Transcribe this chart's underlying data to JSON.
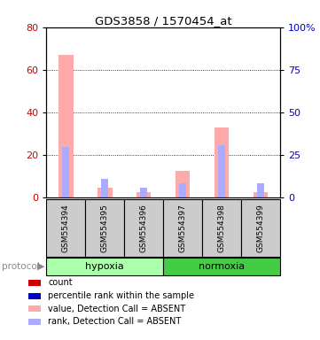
{
  "title": "GDS3858 / 1570454_at",
  "samples": [
    "GSM554394",
    "GSM554395",
    "GSM554396",
    "GSM554397",
    "GSM554398",
    "GSM554399"
  ],
  "groups": [
    "hypoxia",
    "hypoxia",
    "hypoxia",
    "normoxia",
    "normoxia",
    "normoxia"
  ],
  "group_labels": [
    "hypoxia",
    "normoxia"
  ],
  "group_color_hyp": "#aaffaa",
  "group_color_norm": "#44cc44",
  "value_absent": [
    67,
    4.5,
    2.5,
    12.5,
    33,
    2.5
  ],
  "rank_absent": [
    23.5,
    8.5,
    4.5,
    6.5,
    24.5,
    6.5
  ],
  "ylim_left": [
    0,
    80
  ],
  "ylim_right": [
    0,
    100
  ],
  "yticks_left": [
    0,
    20,
    40,
    60,
    80
  ],
  "yticks_right": [
    0,
    25,
    50,
    75,
    100
  ],
  "ytick_labels_right": [
    "0",
    "25",
    "50",
    "75",
    "100%"
  ],
  "color_value_absent": "#ffaaaa",
  "color_rank_absent": "#aaaaff",
  "color_count": "#cc0000",
  "color_percentile": "#0000cc",
  "bg_color": "#ffffff",
  "protocol_label": "protocol",
  "legend_items": [
    {
      "color": "#cc0000",
      "label": "count"
    },
    {
      "color": "#0000cc",
      "label": "percentile rank within the sample"
    },
    {
      "color": "#ffaaaa",
      "label": "value, Detection Call = ABSENT"
    },
    {
      "color": "#aaaaff",
      "label": "rank, Detection Call = ABSENT"
    }
  ]
}
